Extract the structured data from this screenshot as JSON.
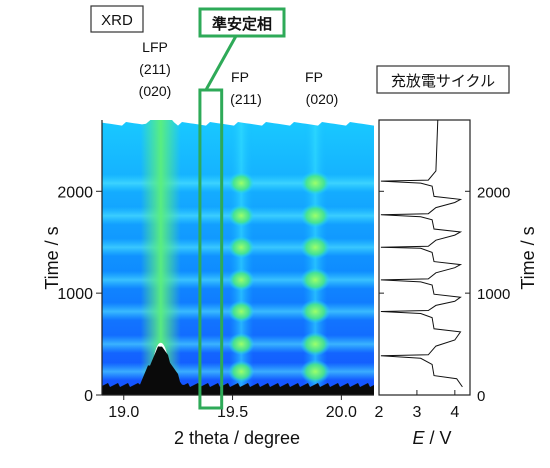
{
  "labels": {
    "xrd": "XRD",
    "metastable": "準安定相",
    "cycle": "充放電サイクル",
    "peak_lfp": [
      "LFP",
      "(211)",
      "(020)"
    ],
    "peak_fp211": [
      "FP",
      "(211)"
    ],
    "peak_fp020": [
      "FP",
      "(020)"
    ]
  },
  "colors": {
    "highlight": "#2eaa58",
    "map_low": "#1a57ff",
    "map_mid": "#12c6ff",
    "map_high": "#5cf07a"
  },
  "chart_data": [
    {
      "type": "heatmap",
      "xlabel": "2 theta / degree",
      "ylabel": "Time / s",
      "xlim": [
        18.9,
        20.15
      ],
      "ylim": [
        0,
        2700
      ],
      "xticks": [
        19.0,
        19.5,
        20.0
      ],
      "xtick_labels": [
        "19.0",
        "19.5",
        "20.0"
      ],
      "yticks": [
        0,
        1000,
        2000
      ],
      "ytick_labels": [
        "0",
        "1000",
        "2000"
      ],
      "peaks": [
        {
          "name": "LFP (211)(020)",
          "two_theta": 19.17
        },
        {
          "name": "FP (211)",
          "two_theta": 19.54
        },
        {
          "name": "FP (020)",
          "two_theta": 19.88
        }
      ],
      "fp_peak_times": [
        230,
        500,
        820,
        1130,
        1450,
        1760,
        2080
      ],
      "highlight_band_two_theta": [
        19.35,
        19.45
      ]
    },
    {
      "type": "line",
      "xlabel_italic": "E",
      "xlabel_rest": " / V",
      "ylabel": "Time / s",
      "xlim": [
        2,
        4.4
      ],
      "ylim": [
        0,
        2700
      ],
      "xticks": [
        2,
        3,
        4
      ],
      "xtick_labels": [
        "2",
        "3",
        "4"
      ],
      "yticks": [
        0,
        1000,
        2000
      ],
      "ytick_labels": [
        "0",
        "1000",
        "2000"
      ],
      "series": [
        {
          "points": [
            [
              4.2,
              80
            ],
            [
              4.05,
              160
            ],
            [
              3.45,
              190
            ],
            [
              3.4,
              300
            ],
            [
              3.1,
              360
            ],
            [
              2.05,
              385
            ],
            [
              3.3,
              395
            ],
            [
              3.5,
              480
            ],
            [
              4.0,
              540
            ],
            [
              4.15,
              620
            ],
            [
              3.45,
              650
            ],
            [
              3.4,
              760
            ],
            [
              3.1,
              800
            ],
            [
              2.05,
              820
            ],
            [
              3.3,
              830
            ],
            [
              3.5,
              880
            ],
            [
              4.0,
              920
            ],
            [
              4.15,
              960
            ],
            [
              3.45,
              990
            ],
            [
              3.4,
              1080
            ],
            [
              3.1,
              1110
            ],
            [
              2.05,
              1130
            ],
            [
              3.3,
              1140
            ],
            [
              3.5,
              1200
            ],
            [
              4.0,
              1250
            ],
            [
              4.15,
              1280
            ],
            [
              3.45,
              1310
            ],
            [
              3.4,
              1400
            ],
            [
              3.1,
              1440
            ],
            [
              2.05,
              1450
            ],
            [
              3.3,
              1460
            ],
            [
              3.5,
              1520
            ],
            [
              4.0,
              1570
            ],
            [
              4.15,
              1600
            ],
            [
              3.45,
              1630
            ],
            [
              3.4,
              1720
            ],
            [
              3.1,
              1750
            ],
            [
              2.05,
              1770
            ],
            [
              3.3,
              1780
            ],
            [
              3.5,
              1840
            ],
            [
              4.0,
              1890
            ],
            [
              4.15,
              1920
            ],
            [
              3.45,
              1950
            ],
            [
              3.4,
              2050
            ],
            [
              3.1,
              2080
            ],
            [
              2.05,
              2100
            ],
            [
              3.3,
              2110
            ],
            [
              3.5,
              2200
            ],
            [
              3.55,
              2700
            ]
          ]
        }
      ]
    }
  ]
}
